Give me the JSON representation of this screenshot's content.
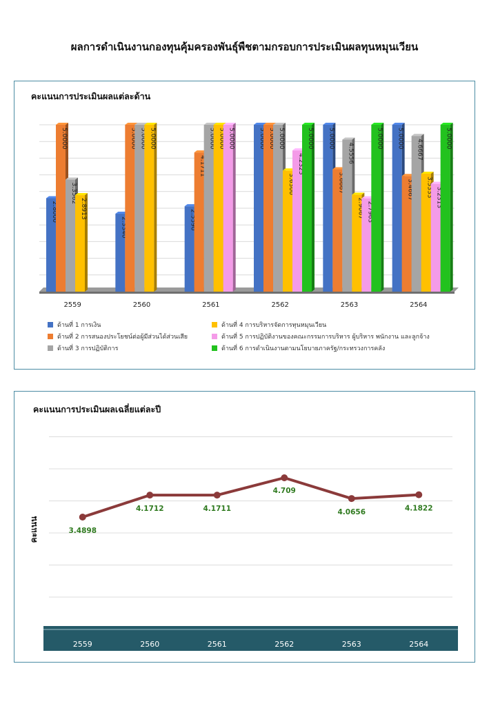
{
  "page": {
    "title": "ผลการดำเนินงานกองทุนคุ้มครองพันธุ์พืชตามกรอบการประเมินผลทุนหมุนเวียน"
  },
  "colors": {
    "border": "#4a8ba3",
    "line": "#8b3a3a",
    "line_label": "#2f7a1f",
    "axis_band": "#255a68"
  },
  "chart_data": [
    {
      "type": "bar",
      "title": "คะแนนการประเมินผลแต่ละด้าน",
      "categories": [
        "2559",
        "2560",
        "2561",
        "2562",
        "2563",
        "2564"
      ],
      "ylim": [
        0,
        5
      ],
      "grid": true,
      "legend_position": "bottom",
      "series": [
        {
          "name": "ด้านที่ 1 การเงิน",
          "color": "#4472c4",
          "values": [
            2.8,
            2.334,
            2.559,
            5.0,
            5.0,
            5.0
          ],
          "labels": [
            "2.8000",
            "2.3340",
            "2.5590",
            "5.0000",
            "5.0000",
            "5.0000"
          ]
        },
        {
          "name": "ด้านที่ 2 การสนองประโยชน์ต่อผู้มีส่วนได้ส่วนเสีย",
          "color": "#ed7d31",
          "values": [
            5.0,
            5.0,
            4.1711,
            5.0,
            3.6667,
            3.4667
          ],
          "labels": [
            "5.0000",
            "5.0000",
            "4.1711",
            "5.0000",
            "3.6667",
            "3.4667"
          ]
        },
        {
          "name": "ด้านที่ 3 การปฏิบัติการ",
          "color": "#a5a5a5",
          "values": [
            3.3562,
            5.0,
            5.0,
            5.0,
            4.5556,
            4.6667
          ],
          "labels": [
            "3.3562",
            "5.0000",
            "5.0000",
            "5.0000",
            "4.5556",
            "4.6667"
          ]
        },
        {
          "name": "ด้านที่ 4 การบริหารจัดการทุนหมุนเวียน",
          "color": "#ffc000",
          "values": [
            2.8913,
            5.0,
            5.0,
            3.63,
            2.9067,
            3.5333
          ],
          "labels": [
            "2.8913",
            "5.0000",
            "5.0000",
            "3.6300",
            "2.9067",
            "3.5333"
          ]
        },
        {
          "name": "ด้านที่ 5 การปฏิบัติงานของคณะกรรมการบริหาร ผู้บริหาร พนักงาน และลูกจ้าง",
          "color": "#f49be8",
          "values": [
            null,
            null,
            5.0,
            4.2325,
            2.7963,
            3.2313
          ],
          "labels": [
            "",
            "",
            "5.0000",
            "4.2325",
            "2.7963",
            "3.2313"
          ]
        },
        {
          "name": "ด้านที่ 6 การดำเนินงานตามนโยบายภาครัฐ/กระทรวงการคลัง",
          "color": "#22c21e",
          "values": [
            null,
            null,
            null,
            5.0,
            5.0,
            5.0
          ],
          "labels": [
            "",
            "",
            "",
            "5.0000",
            "5.0000",
            "5.0000"
          ]
        }
      ]
    },
    {
      "type": "line",
      "title": "คะแนนการประเมินผลเฉลี่ยแต่ละปี",
      "ylabel": "คะแนน",
      "categories": [
        "2559",
        "2560",
        "2561",
        "2562",
        "2563",
        "2564"
      ],
      "values": [
        3.4898,
        4.1712,
        4.1711,
        4.709,
        4.0656,
        4.1822
      ],
      "labels": [
        "3.4898",
        "4.1712",
        "4.1711",
        "4.709",
        "4.0656",
        "4.1822"
      ],
      "ylim": [
        0,
        5
      ],
      "grid": true
    }
  ]
}
